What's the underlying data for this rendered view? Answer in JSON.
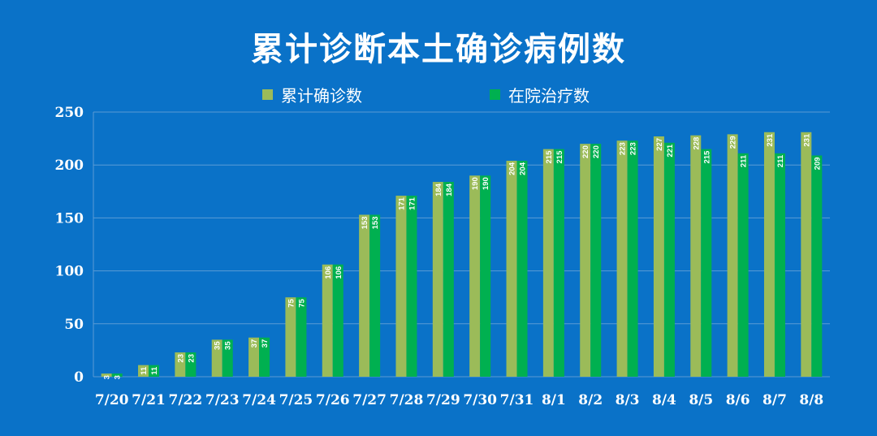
{
  "chart_data": {
    "type": "bar",
    "title": "累计诊断本土确诊病例数",
    "categories": [
      "7/20",
      "7/21",
      "7/22",
      "7/23",
      "7/24",
      "7/25",
      "7/26",
      "7/27",
      "7/28",
      "7/29",
      "7/30",
      "7/31",
      "8/1",
      "8/2",
      "8/3",
      "8/4",
      "8/5",
      "8/6",
      "8/7",
      "8/8"
    ],
    "series": [
      {
        "name": "累计确诊数",
        "color": "#9bbb59",
        "values": [
          3,
          11,
          23,
          35,
          37,
          75,
          106,
          153,
          171,
          184,
          190,
          204,
          215,
          220,
          223,
          227,
          228,
          229,
          231,
          231
        ]
      },
      {
        "name": "在院治疗数",
        "color": "#00b050",
        "values": [
          3,
          11,
          23,
          35,
          37,
          75,
          106,
          153,
          171,
          184,
          190,
          204,
          215,
          220,
          223,
          221,
          215,
          211,
          211,
          209
        ]
      }
    ],
    "ylim": [
      0,
      250
    ],
    "yticks": [
      0,
      50,
      100,
      150,
      200,
      250
    ],
    "grid": true,
    "legend": "top",
    "colors": {
      "background": "#0a72c8",
      "grid": "#5b9bd5",
      "text": "#ffffff"
    }
  }
}
